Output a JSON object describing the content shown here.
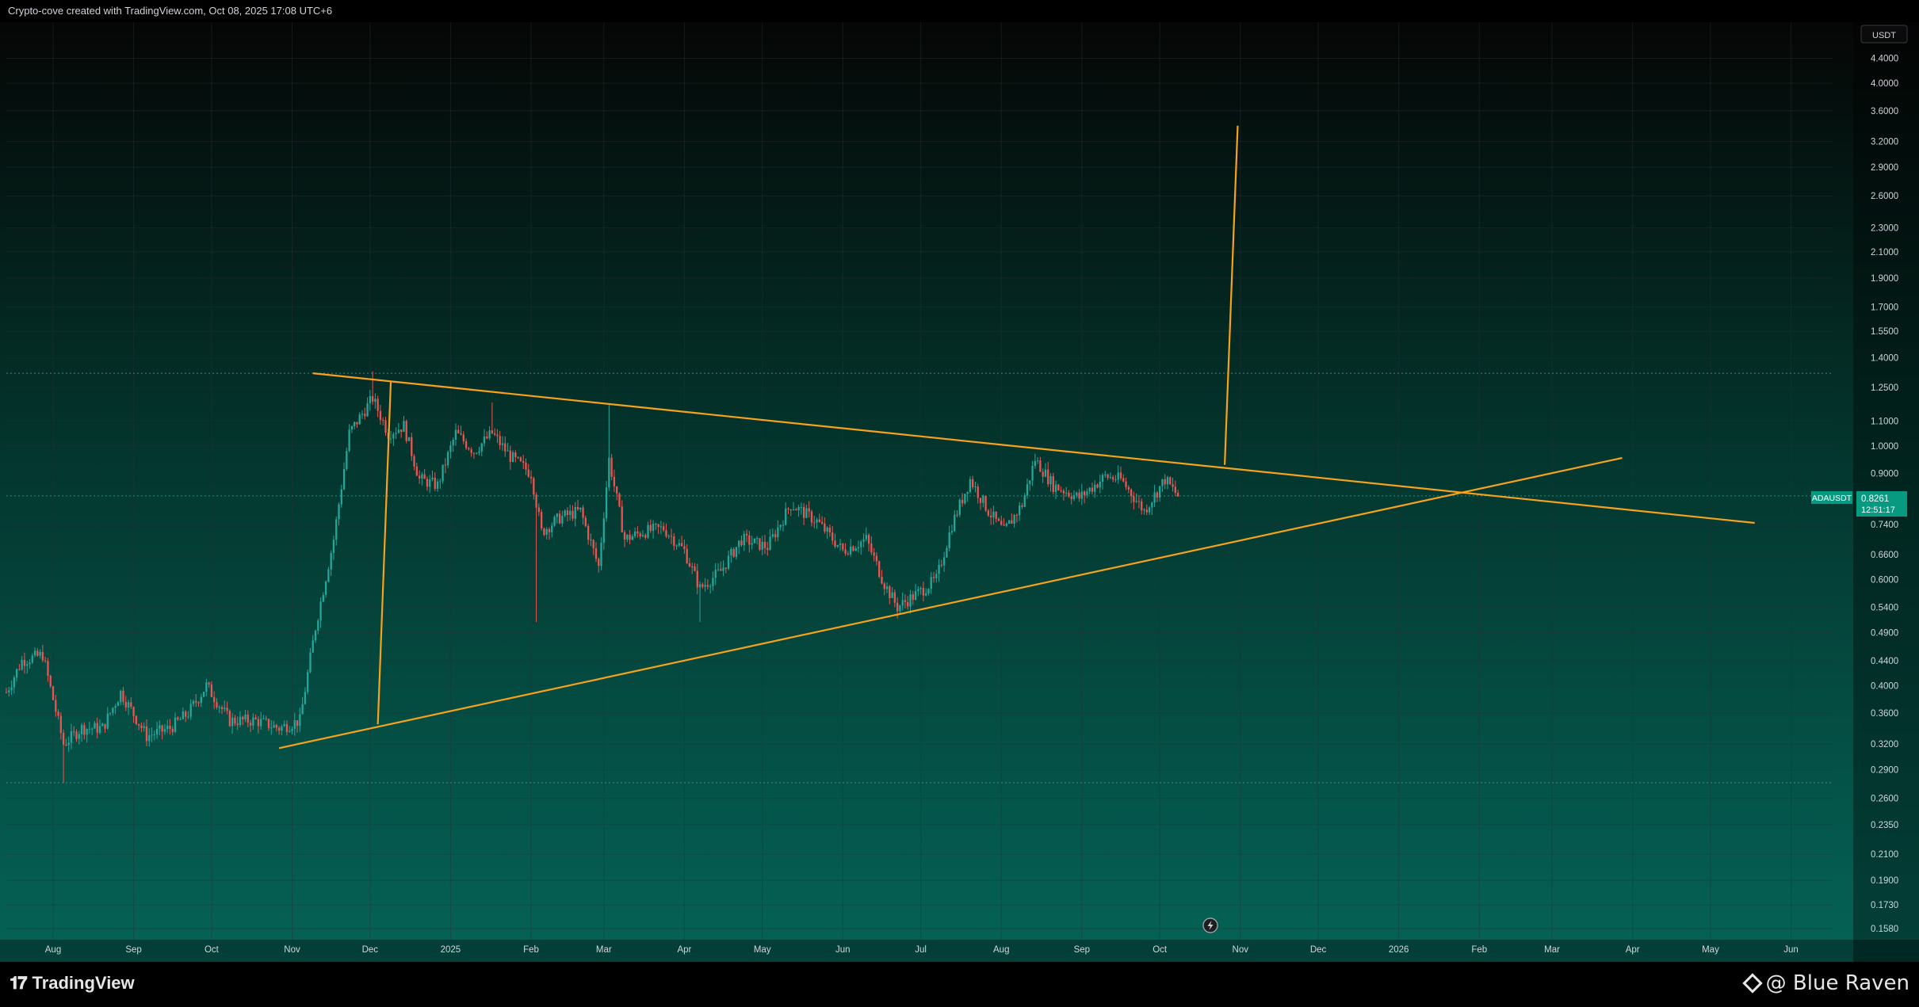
{
  "header": {
    "caption": "Crypto-cove created with TradingView.com, Oct 08, 2025 17:08 UTC+6"
  },
  "footer": {
    "brand": "TradingView",
    "watermark": "@ Blue Raven"
  },
  "colors": {
    "up": "#26a69a",
    "down": "#ef5350",
    "pattern": "#f7a21b",
    "bg_top": "#050605",
    "bg_bottom": "#056357",
    "axis_text": "#d1d4dc",
    "price_tag": "#089981"
  },
  "chart_data": {
    "type": "candlestick",
    "symbol": "ADAUSDT",
    "currency": "USDT",
    "scale": "log",
    "grid": true,
    "ylim": [
      0.1515,
      5.05
    ],
    "y_ticks": [
      "4.4000",
      "4.0000",
      "3.6000",
      "3.2000",
      "2.9000",
      "2.6000",
      "2.3000",
      "2.1000",
      "1.9000",
      "1.7000",
      "1.5500",
      "1.4000",
      "1.2500",
      "1.1000",
      "1.0000",
      "0.9000",
      "0.7400",
      "0.6600",
      "0.6000",
      "0.5400",
      "0.4900",
      "0.4400",
      "0.4000",
      "0.3600",
      "0.3200",
      "0.2900",
      "0.2600",
      "0.2350",
      "0.2100",
      "0.1900",
      "0.1730",
      "0.1580"
    ],
    "x_ticks": [
      {
        "label": "Aug",
        "date": "2024-08-01"
      },
      {
        "label": "Sep",
        "date": "2024-09-01"
      },
      {
        "label": "Oct",
        "date": "2024-10-01"
      },
      {
        "label": "Nov",
        "date": "2024-11-01"
      },
      {
        "label": "Dec",
        "date": "2024-12-01"
      },
      {
        "label": "2025",
        "date": "2025-01-01"
      },
      {
        "label": "Feb",
        "date": "2025-02-01"
      },
      {
        "label": "Mar",
        "date": "2025-03-01"
      },
      {
        "label": "Apr",
        "date": "2025-04-01"
      },
      {
        "label": "May",
        "date": "2025-05-01"
      },
      {
        "label": "Jun",
        "date": "2025-06-01"
      },
      {
        "label": "Jul",
        "date": "2025-07-01"
      },
      {
        "label": "Aug",
        "date": "2025-08-01"
      },
      {
        "label": "Sep",
        "date": "2025-09-01"
      },
      {
        "label": "Oct",
        "date": "2025-10-01"
      },
      {
        "label": "Nov",
        "date": "2025-11-01"
      },
      {
        "label": "Dec",
        "date": "2025-12-01"
      },
      {
        "label": "2026",
        "date": "2026-01-01"
      },
      {
        "label": "Feb",
        "date": "2026-02-01"
      },
      {
        "label": "Mar",
        "date": "2026-03-01"
      },
      {
        "label": "Apr",
        "date": "2026-04-01"
      },
      {
        "label": "May",
        "date": "2026-05-01"
      },
      {
        "label": "Jun",
        "date": "2026-06-01"
      }
    ],
    "x_range": [
      "2024-07-14",
      "2026-06-17"
    ],
    "last_price": {
      "value": "0.8261",
      "countdown": "12:51:17"
    },
    "horizontal_levels": [
      1.32,
      0.8261,
      0.276
    ],
    "trendlines": [
      {
        "name": "upper-resistance",
        "from": [
          "2024-11-09",
          1.32
        ],
        "to": [
          "2026-05-18",
          0.745
        ]
      },
      {
        "name": "lower-support",
        "from": [
          "2024-10-27",
          0.315
        ],
        "to": [
          "2026-03-28",
          0.955
        ]
      },
      {
        "name": "flagpole-measure",
        "from": [
          "2024-12-04",
          0.345
        ],
        "to": [
          "2024-12-09",
          1.28
        ]
      },
      {
        "name": "breakout-target",
        "from": [
          "2025-10-26",
          0.93
        ],
        "to": [
          "2025-10-31",
          3.4
        ]
      }
    ],
    "price_path": [
      {
        "date": "2024-07-14",
        "price": 0.39
      },
      {
        "date": "2024-07-20",
        "price": 0.44
      },
      {
        "date": "2024-07-28",
        "price": 0.45
      },
      {
        "date": "2024-08-05",
        "price": 0.32
      },
      {
        "date": "2024-08-12",
        "price": 0.34
      },
      {
        "date": "2024-08-20",
        "price": 0.34
      },
      {
        "date": "2024-08-27",
        "price": 0.39
      },
      {
        "date": "2024-09-06",
        "price": 0.33
      },
      {
        "date": "2024-09-15",
        "price": 0.34
      },
      {
        "date": "2024-09-22",
        "price": 0.36
      },
      {
        "date": "2024-09-29",
        "price": 0.4
      },
      {
        "date": "2024-10-08",
        "price": 0.35
      },
      {
        "date": "2024-10-18",
        "price": 0.35
      },
      {
        "date": "2024-10-27",
        "price": 0.34
      },
      {
        "date": "2024-11-04",
        "price": 0.35
      },
      {
        "date": "2024-11-10",
        "price": 0.5
      },
      {
        "date": "2024-11-17",
        "price": 0.7
      },
      {
        "date": "2024-11-23",
        "price": 1.05
      },
      {
        "date": "2024-12-02",
        "price": 1.2
      },
      {
        "date": "2024-12-08",
        "price": 1.05
      },
      {
        "date": "2024-12-14",
        "price": 1.08
      },
      {
        "date": "2024-12-20",
        "price": 0.88
      },
      {
        "date": "2024-12-27",
        "price": 0.86
      },
      {
        "date": "2025-01-03",
        "price": 1.05
      },
      {
        "date": "2025-01-10",
        "price": 0.98
      },
      {
        "date": "2025-01-17",
        "price": 1.05
      },
      {
        "date": "2025-01-24",
        "price": 0.96
      },
      {
        "date": "2025-02-01",
        "price": 0.9
      },
      {
        "date": "2025-02-05",
        "price": 0.72
      },
      {
        "date": "2025-02-12",
        "price": 0.76
      },
      {
        "date": "2025-02-20",
        "price": 0.78
      },
      {
        "date": "2025-02-27",
        "price": 0.63
      },
      {
        "date": "2025-03-03",
        "price": 0.95
      },
      {
        "date": "2025-03-09",
        "price": 0.7
      },
      {
        "date": "2025-03-16",
        "price": 0.72
      },
      {
        "date": "2025-03-24",
        "price": 0.73
      },
      {
        "date": "2025-04-01",
        "price": 0.67
      },
      {
        "date": "2025-04-07",
        "price": 0.58
      },
      {
        "date": "2025-04-15",
        "price": 0.62
      },
      {
        "date": "2025-04-23",
        "price": 0.7
      },
      {
        "date": "2025-05-03",
        "price": 0.68
      },
      {
        "date": "2025-05-12",
        "price": 0.8
      },
      {
        "date": "2025-05-22",
        "price": 0.75
      },
      {
        "date": "2025-06-01",
        "price": 0.67
      },
      {
        "date": "2025-06-10",
        "price": 0.7
      },
      {
        "date": "2025-06-17",
        "price": 0.59
      },
      {
        "date": "2025-06-22",
        "price": 0.54
      },
      {
        "date": "2025-06-30",
        "price": 0.57
      },
      {
        "date": "2025-07-07",
        "price": 0.6
      },
      {
        "date": "2025-07-13",
        "price": 0.74
      },
      {
        "date": "2025-07-20",
        "price": 0.88
      },
      {
        "date": "2025-07-27",
        "price": 0.78
      },
      {
        "date": "2025-08-02",
        "price": 0.72
      },
      {
        "date": "2025-08-09",
        "price": 0.8
      },
      {
        "date": "2025-08-14",
        "price": 0.95
      },
      {
        "date": "2025-08-21",
        "price": 0.86
      },
      {
        "date": "2025-08-31",
        "price": 0.82
      },
      {
        "date": "2025-09-10",
        "price": 0.89
      },
      {
        "date": "2025-09-16",
        "price": 0.88
      },
      {
        "date": "2025-09-25",
        "price": 0.78
      },
      {
        "date": "2025-10-03",
        "price": 0.88
      },
      {
        "date": "2025-10-08",
        "price": 0.826
      }
    ],
    "extreme_wicks": [
      {
        "date": "2024-12-02",
        "high": 1.33
      },
      {
        "date": "2025-01-17",
        "high": 1.18
      },
      {
        "date": "2025-03-03",
        "high": 1.17
      },
      {
        "date": "2024-08-05",
        "low": 0.276
      },
      {
        "date": "2025-02-03",
        "low": 0.51
      },
      {
        "date": "2025-04-07",
        "low": 0.51
      }
    ]
  }
}
